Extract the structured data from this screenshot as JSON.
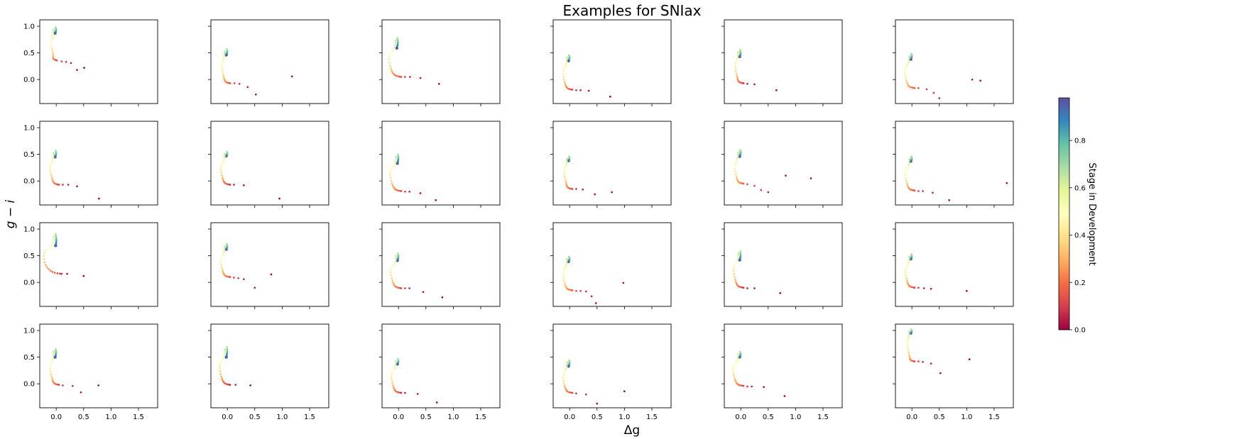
{
  "chart_data": {
    "type": "scatter",
    "title": "Examples for SNIax",
    "xlabel": "Δg",
    "ylabel": "g − i",
    "xlim": [
      -0.3,
      1.85
    ],
    "ylim": [
      -0.45,
      1.12
    ],
    "xticks": [
      0.0,
      0.5,
      1.0,
      1.5
    ],
    "xtick_labels": [
      "0.0",
      "0.5",
      "1.0",
      "1.5"
    ],
    "yticks": [
      0.0,
      0.5,
      1.0
    ],
    "ytick_labels": [
      "0.0",
      "0.5",
      "1.0"
    ],
    "grid": false,
    "layout": {
      "rows": 4,
      "cols": 6
    },
    "colorbar": {
      "label": "Stage in Development",
      "colormap": "Spectral",
      "range": [
        0,
        0.98
      ],
      "ticks": [
        0.0,
        0.2,
        0.4,
        0.6,
        0.8
      ],
      "tick_labels": [
        "0.0",
        "0.2",
        "0.4",
        "0.6",
        "0.8"
      ]
    },
    "colormap_stops": [
      "#9e0142",
      "#d53e4f",
      "#f46d43",
      "#fdae61",
      "#fee08b",
      "#ffffbf",
      "#e6f598",
      "#abdda4",
      "#66c2a5",
      "#3288bd",
      "#5e4fa2"
    ],
    "panels": [
      {
        "start": [
          -0.02,
          0.87
        ],
        "peak": [
          -0.01,
          0.98
        ],
        "loop_x": -0.09,
        "floor": [
          0.01,
          0.36
        ],
        "tail": [
          [
            0.1,
            0.34
          ],
          [
            0.18,
            0.33
          ],
          [
            0.27,
            0.31
          ],
          [
            0.38,
            0.18
          ],
          [
            0.51,
            0.22
          ]
        ]
      },
      {
        "start": [
          -0.02,
          0.46
        ],
        "peak": [
          -0.01,
          0.57
        ],
        "loop_x": -0.1,
        "floor": [
          0.05,
          -0.07
        ],
        "tail": [
          [
            0.13,
            -0.07
          ],
          [
            0.22,
            -0.08
          ],
          [
            0.37,
            -0.14
          ],
          [
            0.52,
            -0.28
          ],
          [
            1.18,
            0.06
          ]
        ]
      },
      {
        "start": [
          -0.03,
          0.59
        ],
        "peak": [
          -0.02,
          0.78
        ],
        "loop_x": -0.17,
        "floor": [
          0.05,
          0.05
        ],
        "tail": [
          [
            0.12,
            0.05
          ],
          [
            0.21,
            0.05
          ],
          [
            0.4,
            0.03
          ],
          [
            0.74,
            -0.08
          ]
        ]
      },
      {
        "start": [
          -0.02,
          0.35
        ],
        "peak": [
          -0.01,
          0.46
        ],
        "loop_x": -0.12,
        "floor": [
          0.05,
          -0.19
        ],
        "tail": [
          [
            0.12,
            -0.2
          ],
          [
            0.2,
            -0.2
          ],
          [
            0.35,
            -0.21
          ],
          [
            0.74,
            -0.32
          ]
        ]
      },
      {
        "start": [
          -0.02,
          0.43
        ],
        "peak": [
          -0.01,
          0.56
        ],
        "loop_x": -0.1,
        "floor": [
          0.05,
          -0.07
        ],
        "tail": [
          [
            0.12,
            -0.08
          ],
          [
            0.25,
            -0.09
          ],
          [
            0.65,
            -0.2
          ]
        ]
      },
      {
        "start": [
          -0.02,
          0.38
        ],
        "peak": [
          -0.01,
          0.48
        ],
        "loop_x": -0.13,
        "floor": [
          0.05,
          -0.16
        ],
        "tail": [
          [
            0.12,
            -0.16
          ],
          [
            0.27,
            -0.18
          ],
          [
            0.4,
            -0.25
          ],
          [
            0.5,
            -0.35
          ],
          [
            1.1,
            0.0
          ],
          [
            1.25,
            -0.02
          ]
        ]
      },
      {
        "start": [
          -0.02,
          0.45
        ],
        "peak": [
          -0.01,
          0.57
        ],
        "loop_x": -0.11,
        "floor": [
          0.05,
          -0.07
        ],
        "tail": [
          [
            0.12,
            -0.07
          ],
          [
            0.22,
            -0.07
          ],
          [
            0.38,
            -0.1
          ],
          [
            0.78,
            -0.33
          ]
        ]
      },
      {
        "start": [
          -0.02,
          0.47
        ],
        "peak": [
          -0.01,
          0.55
        ],
        "loop_x": -0.12,
        "floor": [
          0.05,
          -0.07
        ],
        "tail": [
          [
            0.12,
            -0.07
          ],
          [
            0.3,
            -0.08
          ],
          [
            0.95,
            -0.33
          ]
        ]
      },
      {
        "start": [
          -0.02,
          0.33
        ],
        "peak": [
          -0.01,
          0.5
        ],
        "loop_x": -0.15,
        "floor": [
          0.05,
          -0.19
        ],
        "tail": [
          [
            0.12,
            -0.2
          ],
          [
            0.2,
            -0.2
          ],
          [
            0.4,
            -0.23
          ],
          [
            0.68,
            -0.36
          ]
        ]
      },
      {
        "start": [
          -0.02,
          0.38
        ],
        "peak": [
          -0.01,
          0.46
        ],
        "loop_x": -0.1,
        "floor": [
          0.05,
          -0.15
        ],
        "tail": [
          [
            0.12,
            -0.15
          ],
          [
            0.24,
            -0.16
          ],
          [
            0.46,
            -0.25
          ],
          [
            0.77,
            -0.21
          ]
        ]
      },
      {
        "start": [
          -0.02,
          0.46
        ],
        "peak": [
          -0.01,
          0.58
        ],
        "loop_x": -0.11,
        "floor": [
          0.05,
          -0.05
        ],
        "tail": [
          [
            0.12,
            -0.06
          ],
          [
            0.25,
            -0.09
          ],
          [
            0.37,
            -0.17
          ],
          [
            0.5,
            -0.21
          ],
          [
            0.82,
            0.1
          ],
          [
            1.28,
            0.05
          ]
        ]
      },
      {
        "start": [
          -0.02,
          0.37
        ],
        "peak": [
          -0.01,
          0.46
        ],
        "loop_x": -0.12,
        "floor": [
          0.05,
          -0.18
        ],
        "tail": [
          [
            0.12,
            -0.19
          ],
          [
            0.2,
            -0.19
          ],
          [
            0.38,
            -0.22
          ],
          [
            0.68,
            -0.36
          ],
          [
            1.73,
            -0.04
          ]
        ]
      },
      {
        "start": [
          -0.01,
          0.69
        ],
        "peak": [
          -0.01,
          0.91
        ],
        "loop_x": -0.22,
        "floor": [
          0.1,
          0.16
        ],
        "tail": [
          [
            0.2,
            0.16
          ],
          [
            0.5,
            0.12
          ]
        ]
      },
      {
        "start": [
          -0.02,
          0.62
        ],
        "peak": [
          -0.01,
          0.72
        ],
        "loop_x": -0.12,
        "floor": [
          0.05,
          0.1
        ],
        "tail": [
          [
            0.12,
            0.09
          ],
          [
            0.2,
            0.08
          ],
          [
            0.3,
            0.06
          ],
          [
            0.5,
            -0.1
          ],
          [
            0.8,
            0.15
          ]
        ]
      },
      {
        "start": [
          -0.02,
          0.41
        ],
        "peak": [
          -0.01,
          0.54
        ],
        "loop_x": -0.14,
        "floor": [
          0.05,
          -0.11
        ],
        "tail": [
          [
            0.12,
            -0.11
          ],
          [
            0.2,
            -0.11
          ],
          [
            0.45,
            -0.18
          ],
          [
            0.8,
            -0.28
          ]
        ]
      },
      {
        "start": [
          -0.02,
          0.39
        ],
        "peak": [
          -0.01,
          0.48
        ],
        "loop_x": -0.12,
        "floor": [
          0.05,
          -0.15
        ],
        "tail": [
          [
            0.12,
            -0.16
          ],
          [
            0.2,
            -0.16
          ],
          [
            0.3,
            -0.17
          ],
          [
            0.4,
            -0.26
          ],
          [
            0.48,
            -0.39
          ],
          [
            0.98,
            -0.01
          ]
        ]
      },
      {
        "start": [
          -0.02,
          0.42
        ],
        "peak": [
          -0.01,
          0.59
        ],
        "loop_x": -0.13,
        "floor": [
          0.05,
          -0.1
        ],
        "tail": [
          [
            0.12,
            -0.11
          ],
          [
            0.25,
            -0.11
          ],
          [
            0.72,
            -0.2
          ]
        ]
      },
      {
        "start": [
          -0.02,
          0.44
        ],
        "peak": [
          -0.01,
          0.53
        ],
        "loop_x": -0.12,
        "floor": [
          0.05,
          -0.1
        ],
        "tail": [
          [
            0.12,
            -0.1
          ],
          [
            0.22,
            -0.11
          ],
          [
            0.35,
            -0.12
          ],
          [
            1.0,
            -0.16
          ]
        ]
      },
      {
        "start": [
          -0.02,
          0.5
        ],
        "peak": [
          -0.01,
          0.65
        ],
        "loop_x": -0.11,
        "floor": [
          0.05,
          -0.02
        ],
        "tail": [
          [
            0.12,
            -0.03
          ],
          [
            0.3,
            -0.04
          ],
          [
            0.45,
            -0.16
          ],
          [
            0.77,
            -0.03
          ]
        ]
      },
      {
        "start": [
          -0.02,
          0.5
        ],
        "peak": [
          -0.01,
          0.69
        ],
        "loop_x": -0.14,
        "floor": [
          0.05,
          -0.02
        ],
        "tail": [
          [
            0.15,
            -0.02
          ],
          [
            0.42,
            -0.03
          ]
        ]
      },
      {
        "start": [
          -0.02,
          0.37
        ],
        "peak": [
          -0.01,
          0.47
        ],
        "loop_x": -0.13,
        "floor": [
          0.05,
          -0.17
        ],
        "tail": [
          [
            0.12,
            -0.17
          ],
          [
            0.35,
            -0.19
          ],
          [
            0.7,
            -0.35
          ]
        ]
      },
      {
        "start": [
          -0.02,
          0.33
        ],
        "peak": [
          -0.01,
          0.44
        ],
        "loop_x": -0.12,
        "floor": [
          0.05,
          -0.17
        ],
        "tail": [
          [
            0.12,
            -0.18
          ],
          [
            0.3,
            -0.2
          ],
          [
            0.5,
            -0.37
          ],
          [
            1.0,
            -0.14
          ]
        ]
      },
      {
        "start": [
          -0.02,
          0.5
        ],
        "peak": [
          -0.01,
          0.6
        ],
        "loop_x": -0.14,
        "floor": [
          0.05,
          -0.04
        ],
        "tail": [
          [
            0.12,
            -0.05
          ],
          [
            0.2,
            -0.05
          ],
          [
            0.42,
            -0.06
          ],
          [
            0.8,
            -0.23
          ]
        ]
      },
      {
        "start": [
          -0.02,
          0.95
        ],
        "peak": [
          -0.01,
          1.02
        ],
        "loop_x": -0.08,
        "floor": [
          0.05,
          0.42
        ],
        "tail": [
          [
            0.12,
            0.42
          ],
          [
            0.2,
            0.41
          ],
          [
            0.35,
            0.38
          ],
          [
            0.52,
            0.2
          ],
          [
            1.05,
            0.46
          ]
        ]
      }
    ]
  }
}
